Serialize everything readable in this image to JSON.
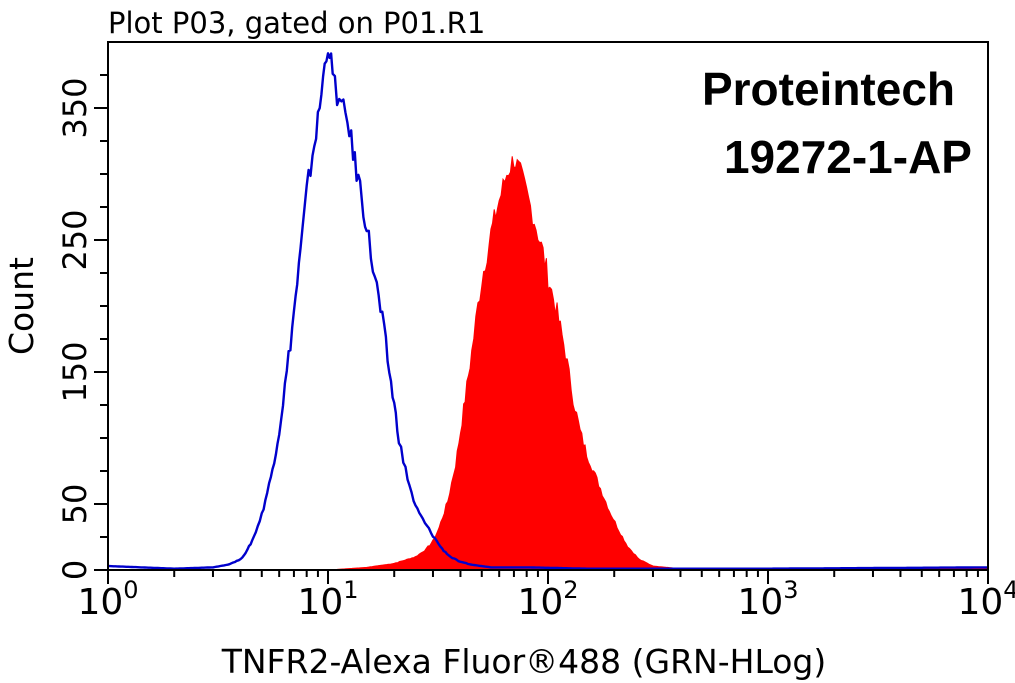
{
  "chart_data": {
    "type": "area",
    "title": "Plot P03, gated on P01.R1",
    "xlabel": "TNFR2-Alexa Fluor®488 (GRN-HLog)",
    "ylabel": "Count",
    "x_scale": "log",
    "xlim": [
      1,
      10000
    ],
    "ylim": [
      0,
      400
    ],
    "x_ticks": [
      {
        "base": "10",
        "exp": "0",
        "value": 1
      },
      {
        "base": "10",
        "exp": "1",
        "value": 10
      },
      {
        "base": "10",
        "exp": "2",
        "value": 100
      },
      {
        "base": "10",
        "exp": "3",
        "value": 1000
      },
      {
        "base": "10",
        "exp": "4",
        "value": 10000
      }
    ],
    "y_ticks": [
      {
        "label": "0",
        "value": 0
      },
      {
        "label": "50",
        "value": 50
      },
      {
        "label": "150",
        "value": 150
      },
      {
        "label": "250",
        "value": 250
      },
      {
        "label": "350",
        "value": 350
      }
    ],
    "annotations": [
      "Proteintech",
      "19272-1-AP"
    ],
    "grid": false,
    "series": [
      {
        "color": "#0000cc",
        "style": "outline",
        "points": [
          [
            1.0,
            3
          ],
          [
            2.0,
            1
          ],
          [
            3.0,
            2
          ],
          [
            3.5,
            4
          ],
          [
            4.0,
            8
          ],
          [
            4.3,
            15
          ],
          [
            4.6,
            25
          ],
          [
            5.0,
            42
          ],
          [
            5.5,
            70
          ],
          [
            6.0,
            105
          ],
          [
            6.5,
            150
          ],
          [
            7.0,
            195
          ],
          [
            7.5,
            240
          ],
          [
            8.0,
            285
          ],
          [
            8.5,
            315
          ],
          [
            9.0,
            340
          ],
          [
            9.5,
            372
          ],
          [
            10.0,
            400
          ],
          [
            10.5,
            375
          ],
          [
            11.0,
            360
          ],
          [
            11.5,
            350
          ],
          [
            12.0,
            345
          ],
          [
            12.5,
            335
          ],
          [
            13.0,
            315
          ],
          [
            14.0,
            290
          ],
          [
            15.0,
            260
          ],
          [
            16.0,
            230
          ],
          [
            17.0,
            205
          ],
          [
            18.0,
            180
          ],
          [
            19.0,
            150
          ],
          [
            20.0,
            125
          ],
          [
            21.0,
            100
          ],
          [
            22.0,
            82
          ],
          [
            23.0,
            70
          ],
          [
            24.0,
            58
          ],
          [
            25.0,
            48
          ],
          [
            27.0,
            38
          ],
          [
            30.0,
            26
          ],
          [
            33.0,
            16
          ],
          [
            36.0,
            10
          ],
          [
            40.0,
            6
          ],
          [
            45.0,
            4
          ],
          [
            55.0,
            2
          ],
          [
            80.0,
            2
          ],
          [
            150.0,
            1
          ],
          [
            1000.0,
            1
          ],
          [
            10000.0,
            2
          ]
        ]
      },
      {
        "color": "#ff0000",
        "style": "filled",
        "points": [
          [
            1.0,
            0
          ],
          [
            10.0,
            0
          ],
          [
            15.0,
            2
          ],
          [
            20.0,
            5
          ],
          [
            25.0,
            10
          ],
          [
            28.0,
            16
          ],
          [
            30.0,
            22
          ],
          [
            32.0,
            32
          ],
          [
            35.0,
            52
          ],
          [
            38.0,
            80
          ],
          [
            40.0,
            105
          ],
          [
            42.0,
            130
          ],
          [
            45.0,
            165
          ],
          [
            48.0,
            200
          ],
          [
            50.0,
            220
          ],
          [
            55.0,
            255
          ],
          [
            60.0,
            280
          ],
          [
            65.0,
            300
          ],
          [
            70.0,
            312
          ],
          [
            75.0,
            300
          ],
          [
            80.0,
            285
          ],
          [
            85.0,
            270
          ],
          [
            90.0,
            255
          ],
          [
            95.0,
            240
          ],
          [
            100.0,
            222
          ],
          [
            110.0,
            195
          ],
          [
            120.0,
            165
          ],
          [
            130.0,
            130
          ],
          [
            140.0,
            105
          ],
          [
            150.0,
            88
          ],
          [
            170.0,
            65
          ],
          [
            190.0,
            45
          ],
          [
            210.0,
            30
          ],
          [
            230.0,
            18
          ],
          [
            260.0,
            8
          ],
          [
            300.0,
            3
          ],
          [
            400.0,
            1
          ],
          [
            10000.0,
            1
          ]
        ]
      }
    ]
  }
}
